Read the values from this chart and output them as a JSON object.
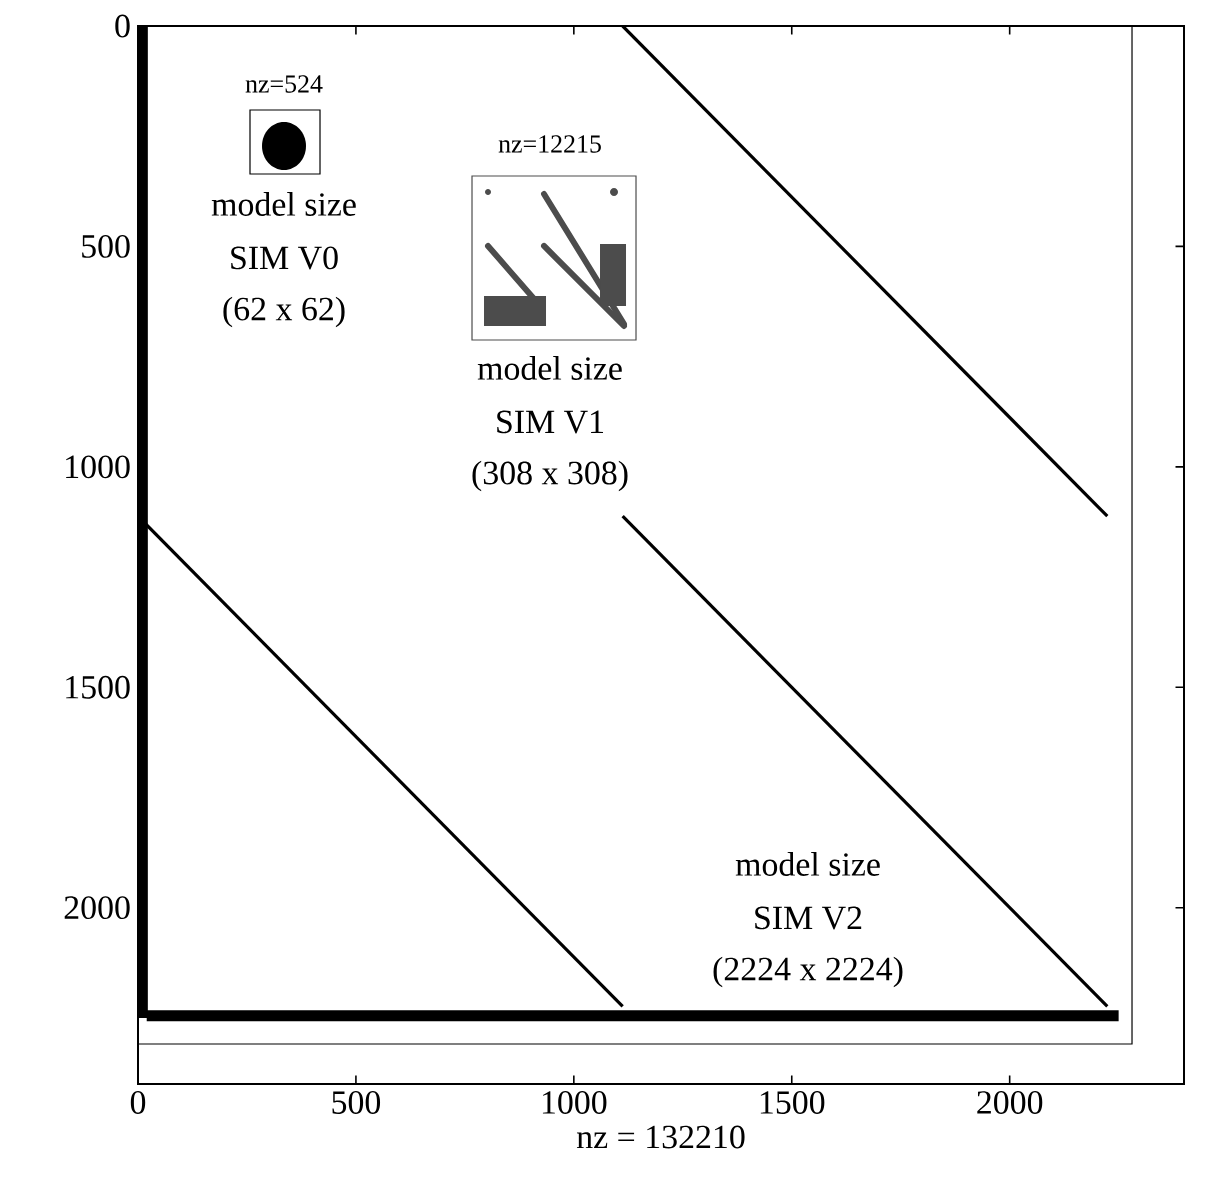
{
  "chart_data": {
    "type": "line",
    "xlabel": "nz = 132210",
    "xlim": [
      0,
      2400
    ],
    "ylim": [
      2400,
      0
    ],
    "xticks": [
      0,
      500,
      1000,
      1500,
      2000
    ],
    "yticks": [
      0,
      500,
      1000,
      1500,
      2000
    ],
    "grid": false,
    "marker": "none",
    "line_style": "solid",
    "series": [
      {
        "color": "#000000",
        "x": [
          10,
          10
        ],
        "values": [
          0,
          2250
        ]
      },
      {
        "color": "#000000",
        "x": [
          20,
          2250
        ],
        "values": [
          2245,
          2245
        ]
      },
      {
        "color": "#000000",
        "x": [
          1112,
          2224
        ],
        "values": [
          0,
          1112
        ]
      },
      {
        "color": "#000000",
        "x": [
          1112,
          2224
        ],
        "values": [
          1112,
          2224
        ]
      },
      {
        "color": "#000000",
        "x": [
          0,
          1112
        ],
        "values": [
          1112,
          2224
        ]
      }
    ],
    "annotations": [
      "nz=524",
      "model size",
      "SIM V0",
      "(62 x 62)",
      "nz=12215",
      "model size",
      "SIM V1",
      "(308 x 308)",
      "model size",
      "SIM V2",
      "(2224 x 2224)"
    ]
  }
}
